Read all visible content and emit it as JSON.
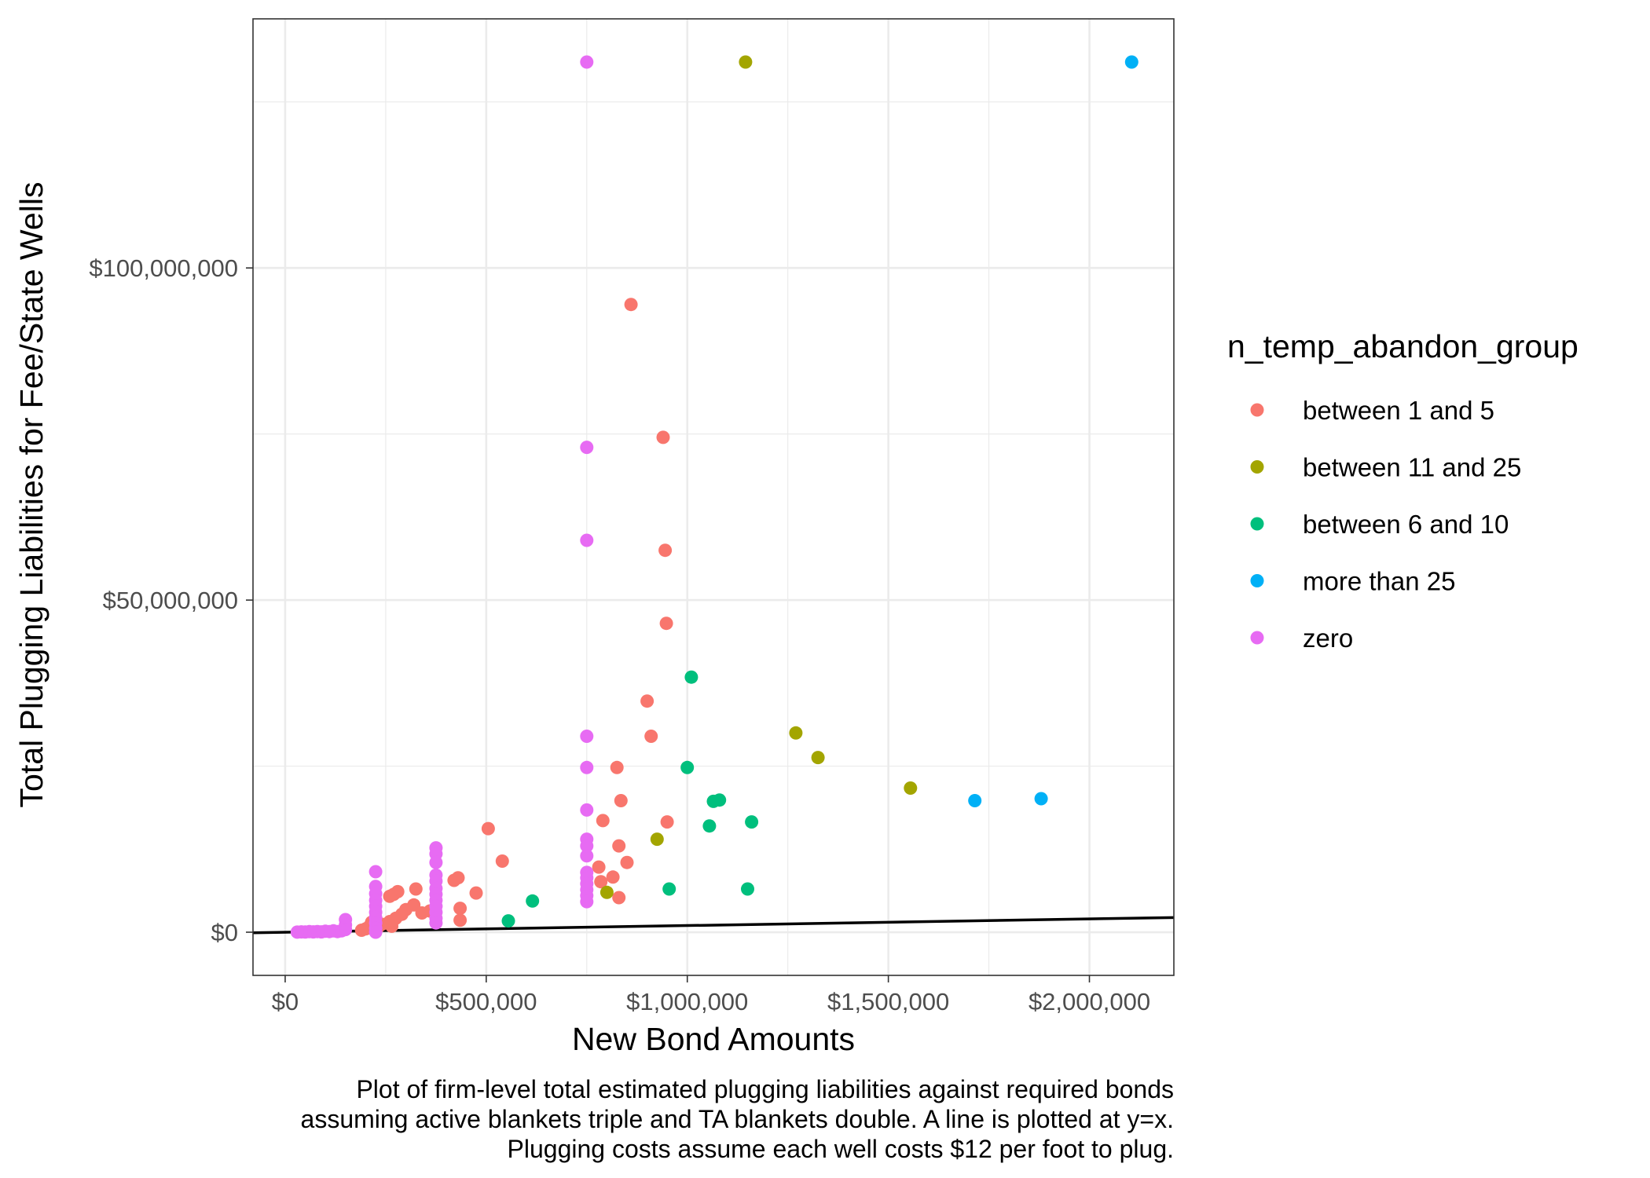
{
  "chart_data": {
    "type": "scatter",
    "title": "",
    "xlabel": "New Bond Amounts",
    "ylabel": "Total Plugging Liabilities for Fee/State Wells",
    "caption": [
      "Plot of firm-level total estimated plugging liabilities against required bonds",
      "assuming active blankets triple and TA blankets double. A line is plotted at y=x.",
      "Plugging costs assume each well costs $12 per foot to plug."
    ],
    "x_ticks": [
      {
        "value": 0,
        "label": "$0"
      },
      {
        "value": 500000,
        "label": "$500,000"
      },
      {
        "value": 1000000,
        "label": "$1,000,000"
      },
      {
        "value": 1500000,
        "label": "$1,500,000"
      },
      {
        "value": 2000000,
        "label": "$2,000,000"
      }
    ],
    "y_ticks": [
      {
        "value": 0,
        "label": "$0"
      },
      {
        "value": 50000000,
        "label": "$50,000,000"
      },
      {
        "value": 100000000,
        "label": "$100,000,000"
      }
    ],
    "xlim": [
      -80000,
      2210000
    ],
    "ylim": [
      -6500000,
      137500000
    ],
    "grid": true,
    "reference_line": {
      "label": "y=x",
      "color": "#000000"
    },
    "legend": {
      "title": "n_temp_abandon_group",
      "position": "right"
    },
    "series": [
      {
        "name": "between 1 and 5",
        "color": "#F8766D",
        "points": [
          [
            860000,
            94500000
          ],
          [
            940000,
            74500000
          ],
          [
            945000,
            57500000
          ],
          [
            948000,
            46500000
          ],
          [
            900000,
            34800000
          ],
          [
            910000,
            29500000
          ],
          [
            825000,
            24800000
          ],
          [
            835000,
            19800000
          ],
          [
            950000,
            16600000
          ],
          [
            790000,
            16800000
          ],
          [
            505000,
            15600000
          ],
          [
            540000,
            10700000
          ],
          [
            830000,
            13000000
          ],
          [
            850000,
            10500000
          ],
          [
            780000,
            9800000
          ],
          [
            815000,
            8300000
          ],
          [
            785000,
            7600000
          ],
          [
            830000,
            5200000
          ],
          [
            475000,
            5900000
          ],
          [
            430000,
            8200000
          ],
          [
            420000,
            7800000
          ],
          [
            435000,
            3600000
          ],
          [
            435000,
            1800000
          ],
          [
            325000,
            6500000
          ],
          [
            280000,
            6100000
          ],
          [
            270000,
            5700000
          ],
          [
            260000,
            5400000
          ],
          [
            320000,
            4100000
          ],
          [
            300000,
            3400000
          ],
          [
            290000,
            2700000
          ],
          [
            275000,
            2100000
          ],
          [
            260000,
            1600000
          ],
          [
            265000,
            900000
          ],
          [
            240000,
            1200000
          ],
          [
            230000,
            700000
          ],
          [
            210000,
            900000
          ],
          [
            200000,
            500000
          ],
          [
            190000,
            300000
          ],
          [
            215000,
            1500000
          ],
          [
            360000,
            3200000
          ],
          [
            340000,
            2900000
          ]
        ]
      },
      {
        "name": "between 11 and 25",
        "color": "#A3A500",
        "points": [
          [
            1145000,
            131000000
          ],
          [
            1270000,
            30000000
          ],
          [
            1325000,
            26300000
          ],
          [
            1555000,
            21700000
          ],
          [
            925000,
            14000000
          ],
          [
            800000,
            6000000
          ]
        ]
      },
      {
        "name": "between 6 and 10",
        "color": "#00BF7D",
        "points": [
          [
            1010000,
            38400000
          ],
          [
            1000000,
            24800000
          ],
          [
            1065000,
            19700000
          ],
          [
            1080000,
            19900000
          ],
          [
            1160000,
            16600000
          ],
          [
            1055000,
            16000000
          ],
          [
            955000,
            6500000
          ],
          [
            1150000,
            6500000
          ],
          [
            615000,
            4700000
          ],
          [
            555000,
            1700000
          ]
        ]
      },
      {
        "name": "more than 25",
        "color": "#00B0F6",
        "points": [
          [
            2105000,
            131000000
          ],
          [
            1715000,
            19800000
          ],
          [
            1880000,
            20100000
          ]
        ]
      },
      {
        "name": "zero",
        "color": "#E76BF3",
        "points": [
          [
            750000,
            131000000
          ],
          [
            750000,
            73000000
          ],
          [
            750000,
            59000000
          ],
          [
            750000,
            29500000
          ],
          [
            750000,
            24800000
          ],
          [
            750000,
            18400000
          ],
          [
            750000,
            14000000
          ],
          [
            750000,
            13000000
          ],
          [
            750000,
            11500000
          ],
          [
            750000,
            9000000
          ],
          [
            750000,
            8200000
          ],
          [
            750000,
            7300000
          ],
          [
            750000,
            6400000
          ],
          [
            750000,
            5500000
          ],
          [
            750000,
            4600000
          ],
          [
            375000,
            12700000
          ],
          [
            375000,
            11800000
          ],
          [
            375000,
            10500000
          ],
          [
            375000,
            8600000
          ],
          [
            375000,
            7700000
          ],
          [
            375000,
            6600000
          ],
          [
            375000,
            5700000
          ],
          [
            375000,
            4800000
          ],
          [
            375000,
            3900000
          ],
          [
            375000,
            3000000
          ],
          [
            375000,
            2100000
          ],
          [
            375000,
            1400000
          ],
          [
            225000,
            9100000
          ],
          [
            225000,
            6900000
          ],
          [
            225000,
            5800000
          ],
          [
            225000,
            4800000
          ],
          [
            225000,
            3900000
          ],
          [
            225000,
            3000000
          ],
          [
            225000,
            2200000
          ],
          [
            225000,
            1400000
          ],
          [
            225000,
            600000
          ],
          [
            225000,
            0
          ],
          [
            150000,
            1900000
          ],
          [
            150000,
            1100000
          ],
          [
            150000,
            400000
          ],
          [
            140000,
            200000
          ],
          [
            130000,
            100000
          ],
          [
            120000,
            200000
          ],
          [
            110000,
            100000
          ],
          [
            100000,
            150000
          ],
          [
            90000,
            50000
          ],
          [
            80000,
            100000
          ],
          [
            70000,
            50000
          ],
          [
            60000,
            80000
          ],
          [
            50000,
            30000
          ],
          [
            40000,
            50000
          ],
          [
            30000,
            20000
          ]
        ]
      }
    ]
  }
}
